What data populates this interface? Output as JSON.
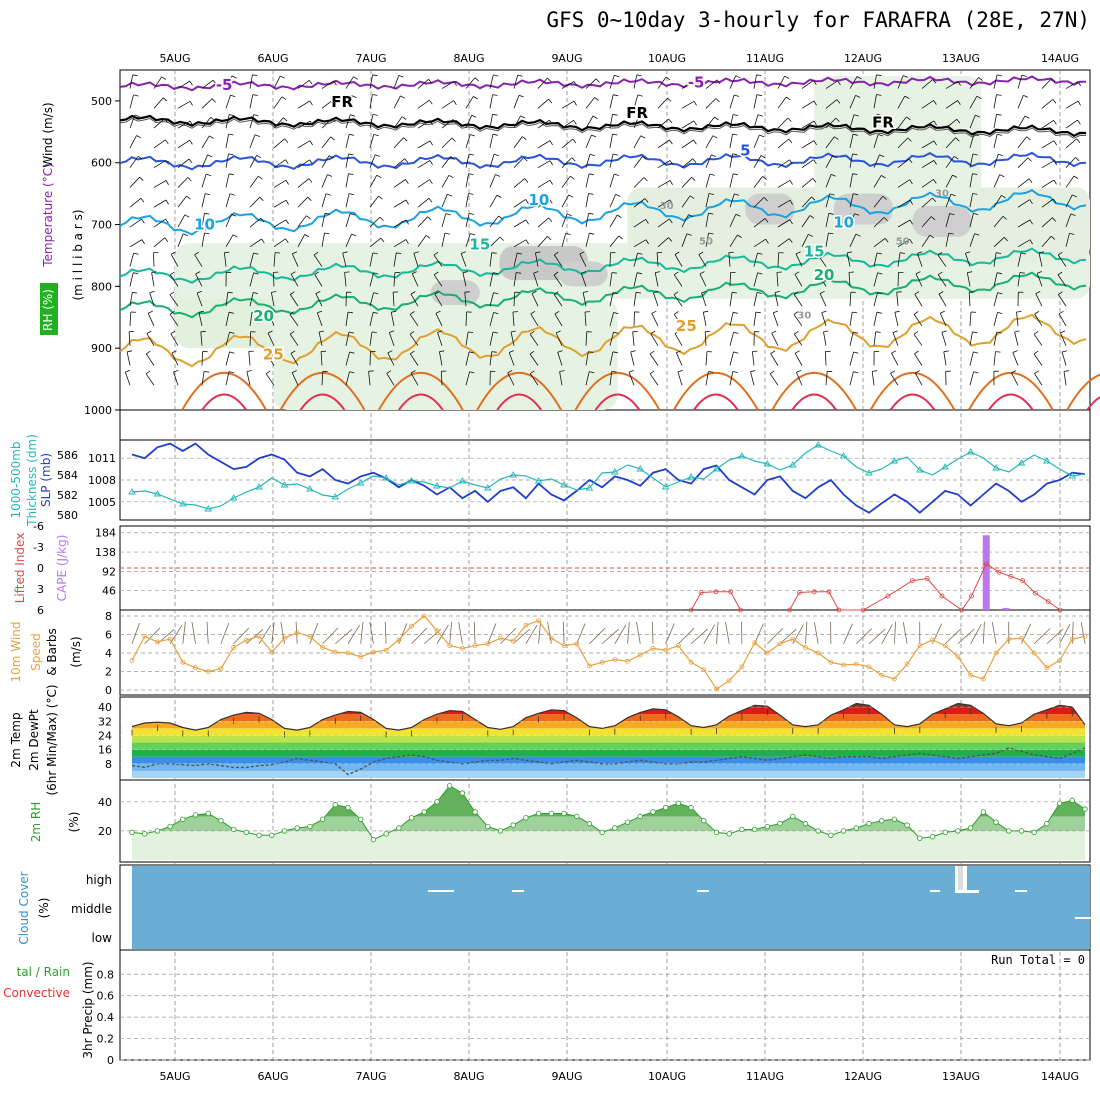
{
  "title": "GFS 0~10day 3-hourly for FARAFRA (28E, 27N)",
  "colors": {
    "slp": "#1f3fc8",
    "thickness": "#22b8b8",
    "lifted": "#e04848",
    "cape": "#bb77ee",
    "wind10": "#e8a040",
    "rh2m": "#2e9e2e",
    "cloud": "#6aaed6",
    "contour_m5": "#8a22b0",
    "contour_5": "#2a55d8",
    "contour_10": "#1ba2e0",
    "contour_15": "#18b89a",
    "contour_20": "#18b070",
    "contour_25": "#e0a030"
  },
  "chart_data": [
    {
      "type": "line",
      "panel": "upper-air",
      "ylabel_parts": [
        "Wind (m/s)",
        "Temperature (°C)",
        "RH (%)",
        "(m i l l i b a r s)"
      ],
      "x": [
        "5AUG",
        "6AUG",
        "7AUG",
        "8AUG",
        "9AUG",
        "10AUG",
        "11AUG",
        "12AUG",
        "13AUG",
        "14AUG"
      ],
      "yticks": [
        500,
        600,
        700,
        800,
        900,
        1000
      ],
      "ylim": [
        450,
        1000
      ],
      "contour_labels": [
        {
          "text": "-5",
          "day": 0.5,
          "p": 482
        },
        {
          "text": "-5",
          "day": 5.3,
          "p": 478
        },
        {
          "text": "FR",
          "day": 1.7,
          "p": 510
        },
        {
          "text": "FR",
          "day": 4.7,
          "p": 528
        },
        {
          "text": "FR",
          "day": 7.2,
          "p": 543
        },
        {
          "text": "5",
          "day": 5.8,
          "p": 588
        },
        {
          "text": "10",
          "day": 3.7,
          "p": 668
        },
        {
          "text": "10",
          "day": 0.3,
          "p": 708
        },
        {
          "text": "10",
          "day": 6.8,
          "p": 705
        },
        {
          "text": "15",
          "day": 3.1,
          "p": 740
        },
        {
          "text": "15",
          "day": 6.5,
          "p": 752
        },
        {
          "text": "20",
          "day": 0.9,
          "p": 856
        },
        {
          "text": "20",
          "day": 6.6,
          "p": 790
        },
        {
          "text": "25",
          "day": 1.0,
          "p": 918
        },
        {
          "text": "25",
          "day": 5.2,
          "p": 872
        },
        {
          "text": "30",
          "day": 5.0,
          "p": 675
        },
        {
          "text": "30",
          "day": 7.8,
          "p": 655
        },
        {
          "text": "50",
          "day": 5.4,
          "p": 732
        },
        {
          "text": "50",
          "day": 7.4,
          "p": 732
        },
        {
          "text": "30",
          "day": 6.4,
          "p": 852
        }
      ]
    },
    {
      "type": "line",
      "panel": "slp-thickness",
      "ylabel_parts": [
        "1000-500mb",
        "Thickness (dm)",
        "SLP (mb)"
      ],
      "slp_ticks": [
        1005,
        1008,
        1011
      ],
      "thickness_ticks": [
        580,
        582,
        584,
        586
      ],
      "slp_values": [
        1011.5,
        1011.0,
        1012.5,
        1013.0,
        1012.0,
        1013.0,
        1011.5,
        1010.5,
        1009.5,
        1009.8,
        1011.0,
        1011.5,
        1010.8,
        1009.0,
        1008.5,
        1009.5,
        1008.0,
        1007.5,
        1008.5,
        1009.0,
        1008.2,
        1007.0,
        1008.0,
        1007.2,
        1006.0,
        1007.0,
        1005.5,
        1006.5,
        1005.0,
        1006.5,
        1007.0,
        1005.5,
        1007.5,
        1006.0,
        1005.2,
        1006.5,
        1008.0,
        1007.0,
        1008.5,
        1008.0,
        1007.2,
        1009.0,
        1009.5,
        1008.0,
        1007.5,
        1009.5,
        1010.0,
        1008.0,
        1007.0,
        1006.0,
        1008.0,
        1008.5,
        1006.5,
        1005.5,
        1007.0,
        1008.0,
        1006.0,
        1004.5,
        1003.5,
        1004.8,
        1006.0,
        1005.0,
        1003.5,
        1005.0,
        1006.5,
        1006.0,
        1004.5,
        1006.0,
        1007.5,
        1006.5,
        1005.0,
        1006.0,
        1007.5,
        1008.0,
        1009.0,
        1008.8
      ],
      "thickness_values": [
        582.3,
        582.4,
        582.1,
        581.6,
        581.1,
        581.0,
        580.6,
        580.9,
        581.7,
        582.3,
        582.8,
        583.7,
        583.0,
        583.1,
        582.6,
        582.0,
        581.8,
        582.6,
        583.2,
        583.9,
        583.7,
        583.0,
        583.4,
        583.3,
        582.9,
        582.7,
        583.4,
        583.0,
        582.7,
        583.6,
        584.0,
        583.9,
        583.4,
        583.6,
        583.0,
        582.5,
        582.7,
        584.2,
        584.3,
        585.0,
        584.6,
        583.7,
        582.8,
        583.3,
        583.8,
        583.6,
        584.6,
        585.5,
        585.9,
        585.4,
        585.1,
        584.5,
        585.0,
        586.2,
        587.0,
        586.4,
        585.9,
        584.8,
        584.2,
        584.6,
        585.4,
        585.8,
        584.5,
        584.0,
        584.8,
        585.6,
        586.3,
        585.7,
        584.7,
        584.3,
        585.2,
        586.0,
        585.4,
        584.6,
        583.9,
        584.1
      ]
    },
    {
      "type": "bar",
      "panel": "lifted-cape",
      "ylabel_parts": [
        "Lifted Index",
        "CAPE (J/kg)"
      ],
      "lifted_ticks": [
        6,
        3,
        0,
        -3,
        -6
      ],
      "cape_ticks": [
        46,
        92,
        138,
        184
      ],
      "cape_bars": [
        {
          "day": 8.25,
          "value": 178
        },
        {
          "day": 8.45,
          "value": 5
        },
        {
          "day": 9.85,
          "value": 32
        },
        {
          "day": 10.0,
          "value": 120
        }
      ],
      "lifted_points": [
        {
          "day": 5.25,
          "value": 6.4
        },
        {
          "day": 5.35,
          "value": 3.5
        },
        {
          "day": 5.5,
          "value": 3.4
        },
        {
          "day": 5.65,
          "value": 3.4
        },
        {
          "day": 5.75,
          "value": 6.4
        },
        {
          "day": 6.25,
          "value": 6.4
        },
        {
          "day": 6.35,
          "value": 3.5
        },
        {
          "day": 6.5,
          "value": 3.4
        },
        {
          "day": 6.65,
          "value": 3.4
        },
        {
          "day": 6.75,
          "value": 6.4
        },
        {
          "day": 7.0,
          "value": 6.4
        },
        {
          "day": 7.25,
          "value": 4.0
        },
        {
          "day": 7.5,
          "value": 1.8
        },
        {
          "day": 7.65,
          "value": 1.5
        },
        {
          "day": 7.8,
          "value": 4.0
        },
        {
          "day": 8.0,
          "value": 6.4
        },
        {
          "day": 8.1,
          "value": 4.0
        },
        {
          "day": 8.25,
          "value": -0.6
        },
        {
          "day": 8.38,
          "value": 0.6
        },
        {
          "day": 8.5,
          "value": 1.2
        },
        {
          "day": 8.62,
          "value": 1.8
        },
        {
          "day": 8.75,
          "value": 3.6
        },
        {
          "day": 8.88,
          "value": 4.8
        },
        {
          "day": 9.0,
          "value": 6.3
        },
        {
          "day": 9.6,
          "value": 6.0
        },
        {
          "day": 9.75,
          "value": 5.0
        },
        {
          "day": 9.88,
          "value": 1.5
        },
        {
          "day": 10.0,
          "value": -0.6
        },
        {
          "day": 10.1,
          "value": 0.2
        }
      ]
    },
    {
      "type": "line",
      "panel": "wind10m",
      "ylabel_parts": [
        "10m Wind",
        "Speed",
        "& Barbs",
        "(m/s)"
      ],
      "yticks": [
        0,
        2,
        4,
        6,
        8
      ],
      "values": [
        3.2,
        5.8,
        5.2,
        5.5,
        3.0,
        2.4,
        2.0,
        2.3,
        4.6,
        5.4,
        5.8,
        4.1,
        5.6,
        6.2,
        5.8,
        4.6,
        4.1,
        4.0,
        3.6,
        4.1,
        4.3,
        5.4,
        6.9,
        8.0,
        6.4,
        4.8,
        4.5,
        4.8,
        5.0,
        5.6,
        5.3,
        7.0,
        7.5,
        5.6,
        4.8,
        5.0,
        2.6,
        3.0,
        3.3,
        3.1,
        3.8,
        4.5,
        4.3,
        4.8,
        3.0,
        2.2,
        0.1,
        1.0,
        2.5,
        5.1,
        4.0,
        5.0,
        5.5,
        4.6,
        4.0,
        3.0,
        2.7,
        2.8,
        2.5,
        1.6,
        1.2,
        2.8,
        4.8,
        5.4,
        4.8,
        3.6,
        1.6,
        1.2,
        4.0,
        5.5,
        5.6,
        4.0,
        2.4,
        3.2,
        5.5,
        5.8
      ]
    },
    {
      "type": "area",
      "panel": "temp2m",
      "ylabel_parts": [
        "2m Temp",
        "2m DewPt",
        "(6hr Min/Max) (°C)"
      ],
      "yticks": [
        8,
        16,
        24,
        32,
        40
      ],
      "temp_values": [
        29,
        31,
        31.5,
        31,
        28.5,
        27,
        28.5,
        33,
        35.5,
        37,
        36.5,
        33,
        28,
        27,
        28.5,
        33,
        35.5,
        37.5,
        37,
        33,
        28,
        27,
        28.5,
        33,
        36,
        38,
        37.5,
        33,
        28.5,
        27.5,
        29,
        34,
        36.5,
        38.5,
        38,
        34,
        29,
        28,
        29.5,
        34,
        37,
        39,
        38.5,
        34.5,
        29.5,
        28.5,
        30,
        35,
        38,
        41,
        40.5,
        35.5,
        30,
        29,
        30,
        35.5,
        38.5,
        42,
        41,
        36,
        30,
        29,
        30.5,
        36,
        39,
        42,
        41,
        36.5,
        30.5,
        29.5,
        31,
        36,
        38.5,
        41,
        40,
        30
      ],
      "dew_values": [
        7,
        6,
        8,
        8,
        7.5,
        7,
        8,
        7,
        6,
        6,
        7,
        7.5,
        9,
        11,
        10,
        9,
        8,
        2,
        5,
        9,
        11,
        12,
        13,
        12,
        10,
        9,
        8,
        9,
        10,
        10,
        11,
        10,
        9,
        8,
        9,
        10,
        9,
        8,
        8,
        9,
        10,
        9,
        8,
        8,
        9,
        9,
        10,
        11,
        12,
        11,
        10,
        11,
        12,
        13,
        12,
        11,
        12,
        12,
        12,
        11,
        12,
        13,
        14,
        13,
        12,
        11,
        12,
        13,
        14,
        17,
        15,
        13,
        12,
        11,
        14,
        17
      ]
    },
    {
      "type": "area",
      "panel": "rh2m",
      "ylabel_parts": [
        "2m RH",
        "(%)"
      ],
      "yticks": [
        20,
        40
      ],
      "values": [
        19,
        18,
        20,
        23,
        28,
        31,
        32,
        27,
        21,
        19,
        17,
        17,
        20,
        22,
        23,
        28,
        38,
        36,
        28,
        14,
        18,
        22,
        29,
        33,
        40,
        51,
        46,
        33,
        23,
        20,
        24,
        29,
        32,
        32,
        32,
        30,
        25,
        19,
        22,
        26,
        30,
        33,
        36,
        39,
        36,
        27,
        19,
        18,
        21,
        21,
        23,
        25,
        30,
        25,
        20,
        17,
        20,
        22,
        25,
        27,
        28,
        24,
        15,
        16,
        19,
        20,
        22,
        33,
        26,
        20,
        20,
        19,
        25,
        39,
        41,
        35
      ]
    },
    {
      "type": "heatmap",
      "panel": "cloud",
      "ylabel_parts": [
        "Cloud Cover",
        "(%)"
      ],
      "levels": [
        "high",
        "middle",
        "low"
      ]
    },
    {
      "type": "bar",
      "panel": "precip",
      "ylabel_parts": [
        "3hr Precip (mm)"
      ],
      "legend_total": "tal / Rain",
      "legend_conv": "Convective",
      "run_total": "Run Total = 0",
      "yticks": [
        "0",
        "0.2",
        "0.4",
        "0.6",
        "0.8"
      ],
      "values": []
    }
  ]
}
